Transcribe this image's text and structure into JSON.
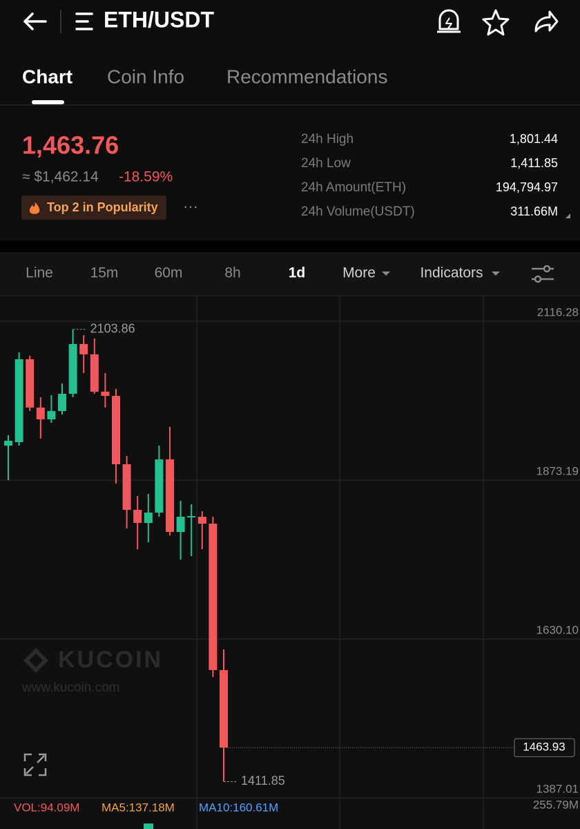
{
  "header": {
    "title": "ETH/USDT"
  },
  "tabs": [
    "Chart",
    "Coin Info",
    "Recommendations"
  ],
  "ticker": {
    "price": "1,463.76",
    "fiat_price": "≈ $1,462.14",
    "change": "-18.59%",
    "badge": "Top 2 in Popularity",
    "more": "···"
  },
  "stats": [
    {
      "label": "24h High",
      "value": "1,801.44"
    },
    {
      "label": "24h Low",
      "value": "1,411.85"
    },
    {
      "label": "24h Amount(ETH)",
      "value": "194,794.97"
    },
    {
      "label": "24h Volume(USDT)",
      "value": "311.66M"
    }
  ],
  "timeframes": [
    "Line",
    "15m",
    "60m",
    "8h",
    "1d",
    "More",
    "Indicators"
  ],
  "watermark": {
    "brand": "KUCOIN",
    "url": "www.kucoin.com"
  },
  "chart_data": {
    "type": "candlestick",
    "ylim": [
      1387.01,
      2153.27
    ],
    "yticks": [
      2116.28,
      1873.19,
      {
        "value": 1630.1,
        "label": "1630.10"
      },
      1387.01
    ],
    "grid": true,
    "up_color": "#22c08f",
    "down_color": "#f2575b",
    "series": [
      {
        "open": [
          1926.0,
          1931.3,
          2058.1,
          1984.2,
          1966.2,
          1978.9,
          2005.3,
          2081.4,
          2065.6,
          2008.5,
          2002.1,
          1897.5,
          1827.7,
          1807.7,
          1823.5,
          1904.9,
          1793.9,
          1816.1,
          1817.2,
          1806.6,
          1582.6
        ],
        "high": [
          1941.9,
          2068.7,
          2063.4,
          2000.0,
          2003.2,
          2021.2,
          2103.86,
          2095.1,
          2089.9,
          2037.0,
          2012.7,
          1910.2,
          1848.9,
          1852.1,
          1926.0,
          1954.6,
          1841.5,
          1836.2,
          1825.6,
          1817.2,
          1614.3
        ],
        "low": [
          1873.2,
          1926.0,
          1978.9,
          1936.6,
          1961.0,
          1973.6,
          2000.0,
          2037.0,
          2005.3,
          1984.2,
          1867.9,
          1799.2,
          1767.5,
          1778.1,
          1817.2,
          1788.6,
          1751.6,
          1756.9,
          1767.5,
          1572.0,
          1411.85
        ],
        "close": [
          1933.4,
          2058.1,
          1984.2,
          1966.2,
          1978.9,
          2005.3,
          2081.4,
          2065.6,
          2008.5,
          2002.1,
          1897.5,
          1827.7,
          1807.7,
          1823.5,
          1904.9,
          1793.9,
          1817.2,
          1818.2,
          1806.6,
          1582.6,
          1463.93
        ]
      }
    ],
    "high_marker": 2103.86,
    "low_marker": 1411.85,
    "last_price": 1463.93
  },
  "volume_bar": {
    "vol": "VOL:94.09M",
    "ma5": "MA5:137.18M",
    "ma10": "MA10:160.61M",
    "scale": "255.79M"
  }
}
